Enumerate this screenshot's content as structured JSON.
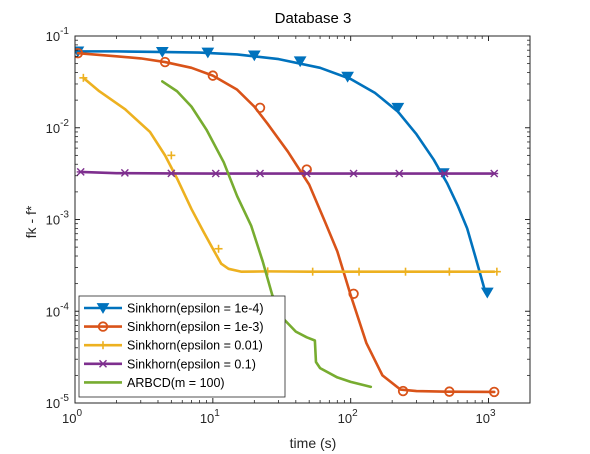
{
  "chart_data": {
    "type": "line",
    "title": "Database 3",
    "xlabel": "time (s)",
    "ylabel": "fk - f*",
    "xscale": "log",
    "yscale": "log",
    "xlim": [
      1,
      2000
    ],
    "ylim": [
      1e-05,
      0.1
    ],
    "x_ticks": [
      {
        "value": 1,
        "base": "10",
        "exp": "0"
      },
      {
        "value": 10,
        "base": "10",
        "exp": "1"
      },
      {
        "value": 100,
        "base": "10",
        "exp": "2"
      },
      {
        "value": 1000,
        "base": "10",
        "exp": "3"
      }
    ],
    "y_ticks": [
      {
        "value": 1e-05,
        "base": "10",
        "exp": "-5"
      },
      {
        "value": 0.0001,
        "base": "10",
        "exp": "-4"
      },
      {
        "value": 0.001,
        "base": "10",
        "exp": "-3"
      },
      {
        "value": 0.01,
        "base": "10",
        "exp": "-2"
      },
      {
        "value": 0.1,
        "base": "10",
        "exp": "-1"
      }
    ],
    "grid": false,
    "legend_position": "bottom-left",
    "series": [
      {
        "name": "Sinkhorn(epsilon = 1e-4)",
        "color": "#0072BD",
        "marker": "triangle-down",
        "x": [
          1.05,
          2,
          4,
          8,
          15,
          30,
          60,
          100,
          150,
          220,
          300,
          400,
          500,
          600,
          700,
          800,
          950
        ],
        "y": [
          0.068,
          0.068,
          0.067,
          0.066,
          0.063,
          0.056,
          0.045,
          0.034,
          0.024,
          0.015,
          0.0085,
          0.0045,
          0.0025,
          0.0014,
          0.0008,
          0.0004,
          0.00016
        ],
        "marker_x": [
          1.05,
          4.3,
          9.2,
          20,
          43,
          95,
          220,
          470,
          980
        ],
        "marker_y": [
          0.068,
          0.0672,
          0.0661,
          0.0615,
          0.053,
          0.036,
          0.0165,
          0.0032,
          0.00016
        ]
      },
      {
        "name": "Sinkhorn(epsilon = 1e-3)",
        "color": "#D95319",
        "marker": "circle",
        "x": [
          1.05,
          2,
          3,
          4.5,
          7,
          10,
          15,
          20,
          25,
          35,
          50,
          65,
          80,
          100,
          130,
          170,
          230,
          300,
          500,
          1100
        ],
        "y": [
          0.065,
          0.06,
          0.057,
          0.052,
          0.045,
          0.037,
          0.026,
          0.017,
          0.011,
          0.0055,
          0.0024,
          0.00095,
          0.00045,
          0.00015,
          4.5e-05,
          2e-05,
          1.4e-05,
          1.35e-05,
          1.33e-05,
          1.32e-05
        ],
        "marker_x": [
          1.05,
          4.5,
          10,
          22,
          48,
          105,
          240,
          520,
          1100
        ],
        "marker_y": [
          0.065,
          0.052,
          0.037,
          0.0165,
          0.0035,
          0.000155,
          1.35e-05,
          1.33e-05,
          1.32e-05
        ]
      },
      {
        "name": "Sinkhorn(epsilon = 0.01)",
        "color": "#EDB120",
        "marker": "plus",
        "x": [
          1.15,
          1.5,
          2.3,
          3.5,
          4.5,
          5.5,
          7,
          8.5,
          10,
          11.5,
          13,
          16,
          25,
          50,
          100,
          300,
          1100
        ],
        "y": [
          0.035,
          0.025,
          0.016,
          0.009,
          0.005,
          0.0028,
          0.0013,
          0.00075,
          0.00048,
          0.00033,
          0.00029,
          0.00027,
          0.000272,
          0.00027,
          0.00027,
          0.00027,
          0.00027
        ],
        "marker_x": [
          1.15,
          5,
          11,
          25,
          53,
          115,
          250,
          520,
          1150
        ],
        "marker_y": [
          0.035,
          0.005,
          0.00048,
          0.000272,
          0.00027,
          0.00027,
          0.00027,
          0.00027,
          0.00027
        ]
      },
      {
        "name": "Sinkhorn(epsilon = 0.1)",
        "color": "#7E2F8E",
        "marker": "star",
        "x": [
          1.1,
          2,
          5,
          10,
          30,
          100,
          300,
          1100
        ],
        "y": [
          0.0033,
          0.0032,
          0.00318,
          0.00317,
          0.00317,
          0.00317,
          0.00317,
          0.00317
        ],
        "marker_x": [
          1.1,
          2.3,
          5,
          10.5,
          22,
          48,
          105,
          225,
          480,
          1100
        ],
        "marker_y": [
          0.0033,
          0.00322,
          0.00318,
          0.00317,
          0.00317,
          0.00317,
          0.00317,
          0.00317,
          0.00317,
          0.00317
        ]
      },
      {
        "name": "ARBCD(m = 100)",
        "color": "#77AC30",
        "marker": "none",
        "x": [
          4.3,
          5.5,
          7,
          9,
          12,
          15,
          19,
          23,
          27,
          32,
          40,
          48,
          55,
          56,
          60,
          80,
          100,
          140
        ],
        "y": [
          0.032,
          0.025,
          0.017,
          0.0095,
          0.0042,
          0.0018,
          0.00085,
          0.00035,
          0.00015,
          8.5e-05,
          6e-05,
          5.2e-05,
          4.8e-05,
          2.8e-05,
          2.4e-05,
          1.9e-05,
          1.7e-05,
          1.5e-05
        ]
      }
    ]
  }
}
